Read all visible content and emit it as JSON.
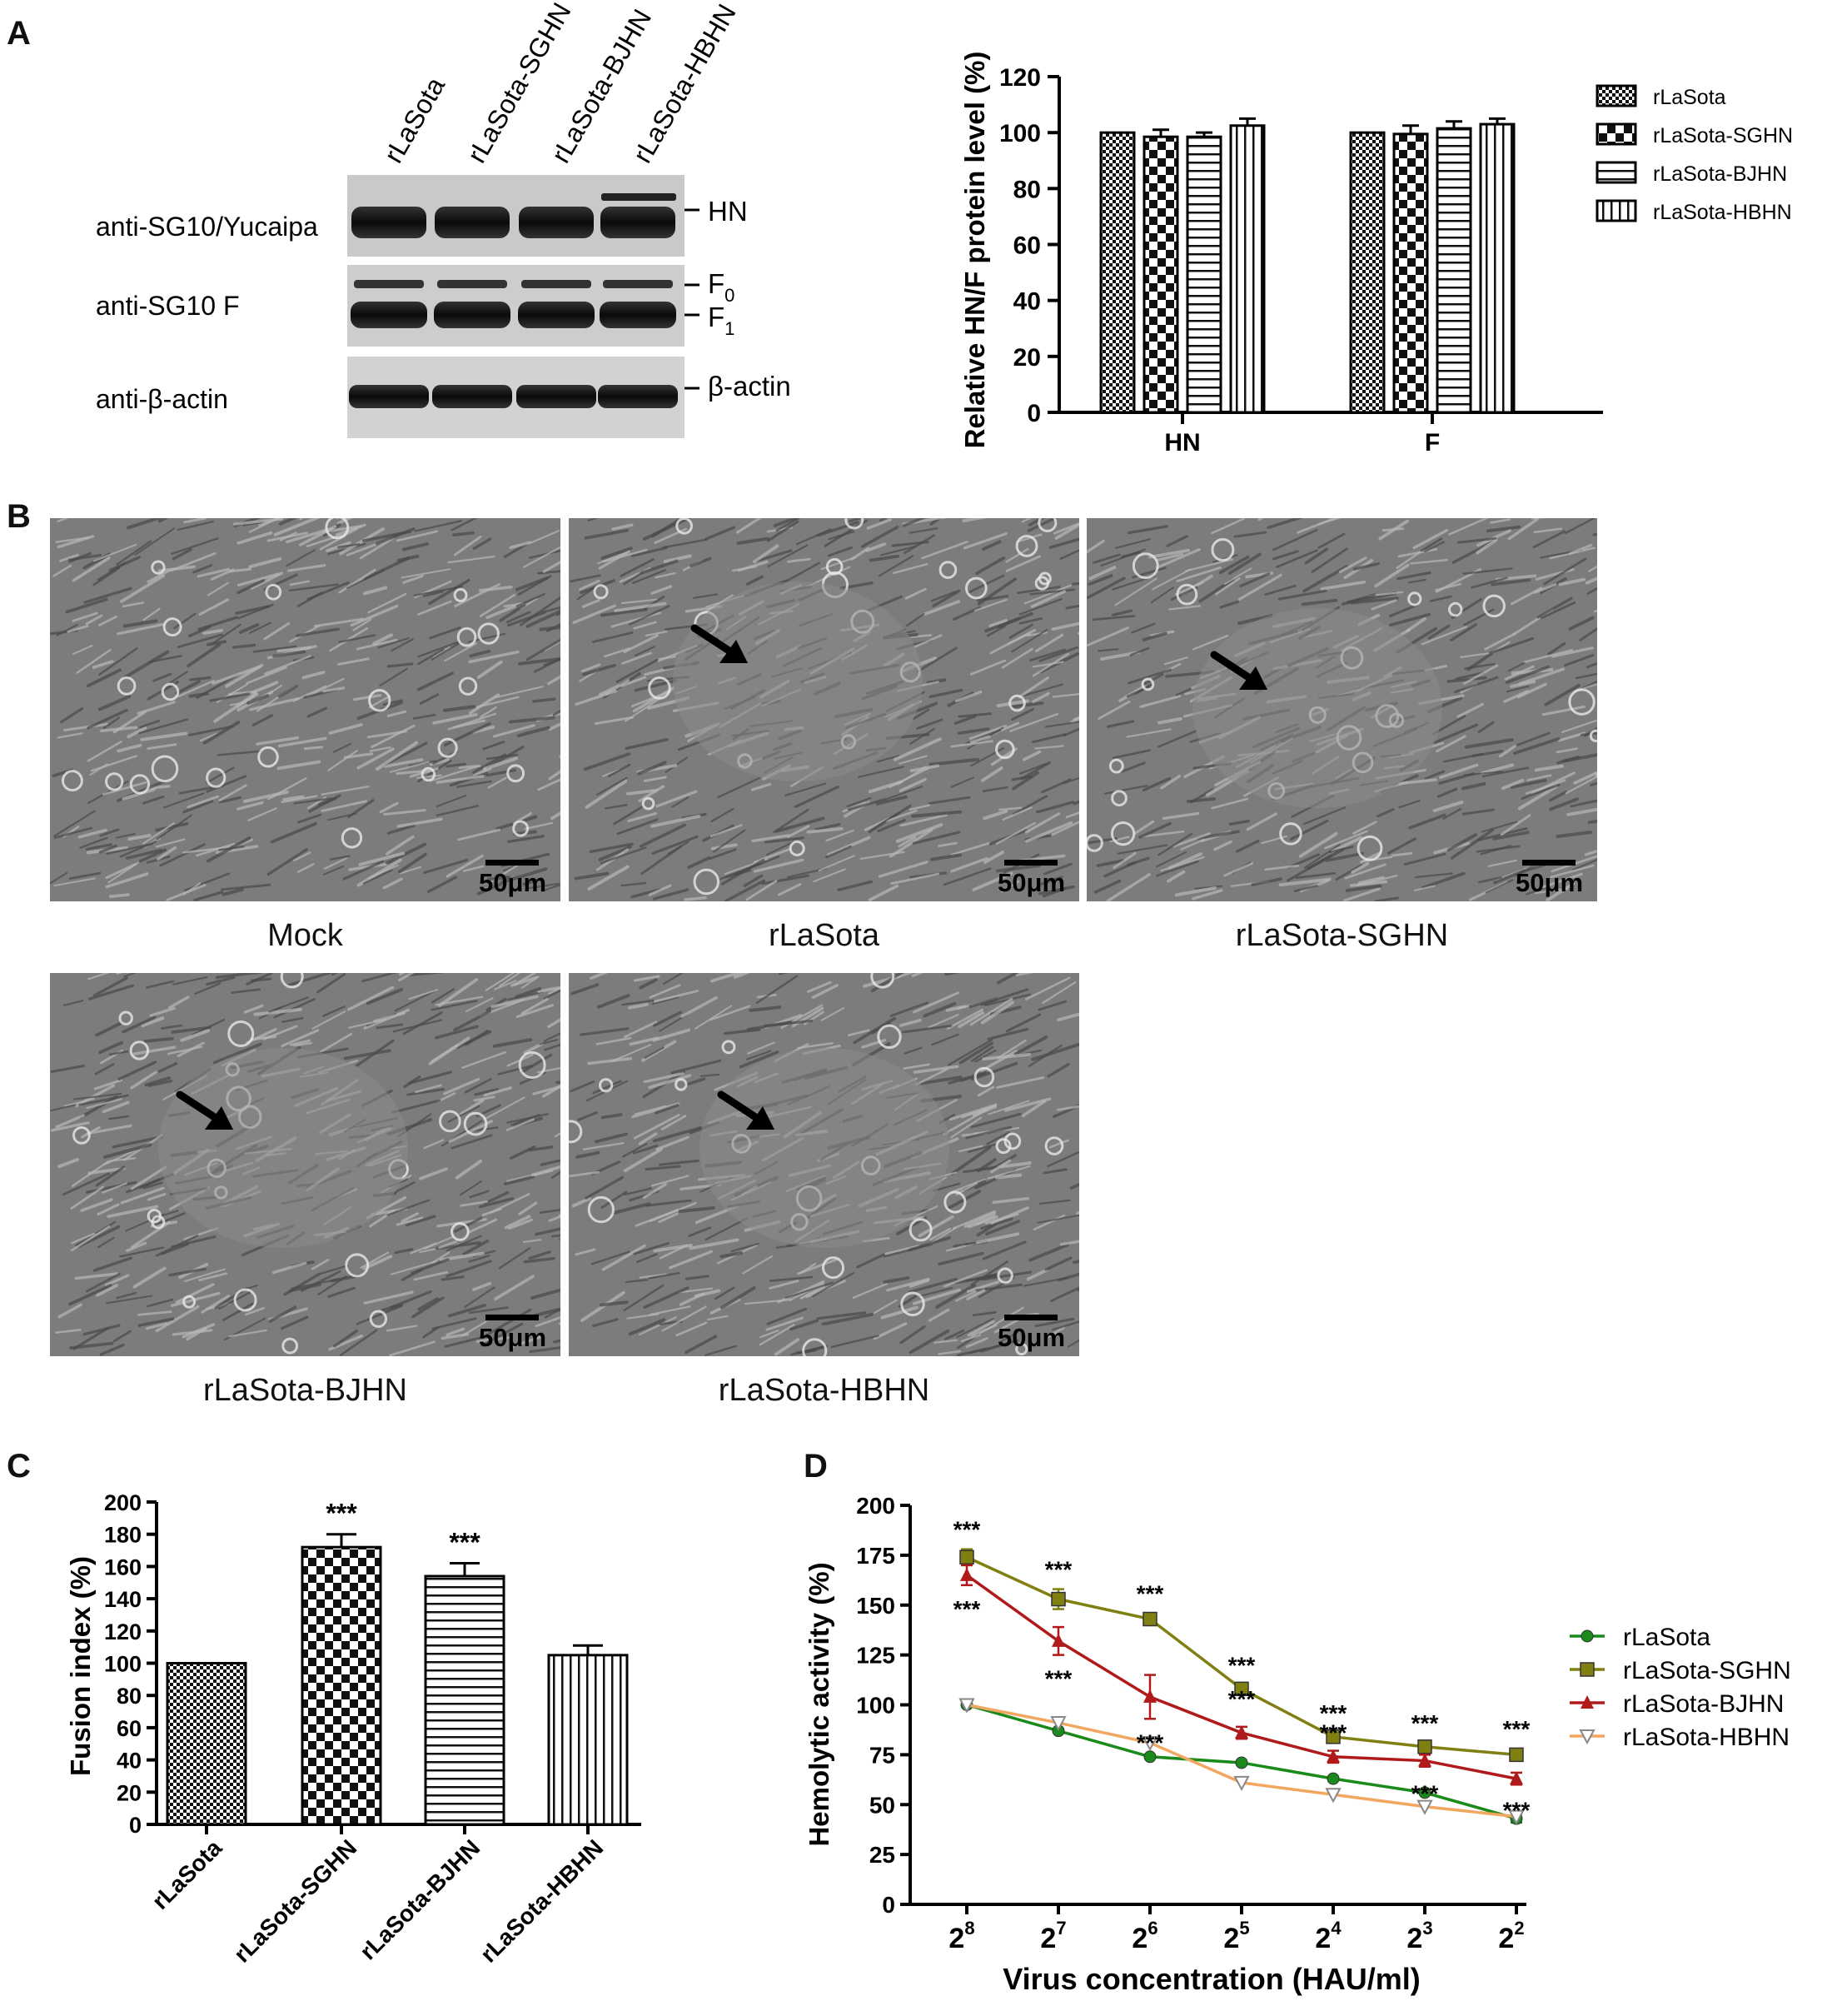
{
  "panels": {
    "a": "A",
    "b": "B",
    "c": "C",
    "d": "D"
  },
  "western_blot": {
    "lanes": [
      "rLaSota",
      "rLaSota-SGHN",
      "rLaSota-BJHN",
      "rLaSota-HBHN"
    ],
    "rows": [
      {
        "antibody": "anti-SG10/Yucaipa",
        "bands": [
          "HN"
        ]
      },
      {
        "antibody": "anti-SG10 F",
        "bands": [
          "F0",
          "F1"
        ]
      },
      {
        "antibody": "anti-β-actin",
        "bands": [
          "β-actin"
        ]
      }
    ],
    "band_labels": {
      "hn": "HN",
      "f0_base": "F",
      "f0_sub": "0",
      "f1_base": "F",
      "f1_sub": "1",
      "actin": "β-actin"
    }
  },
  "micrographs": {
    "scale_label": "50μm",
    "arrow_icon": "arrow-icon",
    "captions": [
      "Mock",
      "rLaSota",
      "rLaSota-SGHN",
      "rLaSota-BJHN",
      "rLaSota-HBHN"
    ]
  },
  "chart_data": [
    {
      "type": "bar",
      "panel": "A",
      "ylabel": "Relative HN/F protein level (%)",
      "categories": [
        "HN",
        "F"
      ],
      "ylim": [
        0,
        120
      ],
      "yticks": [
        "0",
        "20",
        "40",
        "60",
        "80",
        "100",
        "120"
      ],
      "legend_position": "right",
      "series": [
        {
          "name": "rLaSota",
          "pattern": "checker-fine",
          "values": [
            100,
            100
          ],
          "errors": [
            0,
            0
          ]
        },
        {
          "name": "rLaSota-SGHN",
          "pattern": "checker-coarse",
          "values": [
            98.5,
            99.5
          ],
          "errors": [
            2.5,
            3
          ]
        },
        {
          "name": "rLaSota-BJHN",
          "pattern": "horizontal-lines",
          "values": [
            98.5,
            101.5
          ],
          "errors": [
            1.5,
            2.5
          ]
        },
        {
          "name": "rLaSota-HBHN",
          "pattern": "vertical-lines",
          "values": [
            102.5,
            103
          ],
          "errors": [
            2.5,
            2
          ]
        }
      ]
    },
    {
      "type": "bar",
      "panel": "C",
      "ylabel": "Fusion index (%)",
      "categories": [
        "rLaSota",
        "rLaSota-SGHN",
        "rLaSota-BJHN",
        "rLaSota-HBHN"
      ],
      "values": [
        100,
        172,
        154,
        105
      ],
      "errors": [
        0,
        8,
        8,
        6
      ],
      "annotations": [
        "",
        "***",
        "***",
        ""
      ],
      "patterns": [
        "checker-fine",
        "checker-coarse",
        "horizontal-lines",
        "vertical-lines"
      ],
      "ylim": [
        0,
        200
      ],
      "yticks": [
        "0",
        "20",
        "40",
        "60",
        "80",
        "100",
        "120",
        "140",
        "160",
        "180",
        "200"
      ]
    },
    {
      "type": "line",
      "panel": "D",
      "xlabel": "Virus concentration (HAU/ml)",
      "ylabel": "Hemolytic activity (%)",
      "x_base": "2",
      "x": [
        "8",
        "7",
        "6",
        "5",
        "4",
        "3",
        "2"
      ],
      "ylim": [
        0,
        200
      ],
      "yticks": [
        "0",
        "25",
        "50",
        "75",
        "100",
        "125",
        "150",
        "175",
        "200"
      ],
      "legend_position": "right",
      "series": [
        {
          "name": "rLaSota",
          "color": "#1a8a1a",
          "marker": "circle",
          "values": [
            100,
            87,
            74,
            71,
            63,
            56,
            43
          ],
          "errors": [
            0,
            0,
            0,
            0,
            0,
            0,
            2
          ],
          "annotations": [
            "",
            "",
            "",
            "",
            "",
            "",
            ""
          ]
        },
        {
          "name": "rLaSota-SGHN",
          "color": "#7f7f12",
          "marker": "square",
          "values": [
            174,
            153,
            143,
            108,
            84,
            79,
            75
          ],
          "errors": [
            4,
            5,
            3,
            2,
            2,
            2,
            3
          ],
          "annotations": [
            "***",
            "***",
            "***",
            "***",
            "***",
            "***",
            "***"
          ]
        },
        {
          "name": "rLaSota-BJHN",
          "color": "#b01a1a",
          "marker": "triangle",
          "values": [
            165,
            132,
            104,
            86,
            74,
            72,
            63
          ],
          "errors": [
            5,
            7,
            11,
            3,
            3,
            3,
            3
          ],
          "annotations": [
            "***",
            "***",
            "***",
            "***",
            "***",
            "***",
            "***"
          ]
        },
        {
          "name": "rLaSota-HBHN",
          "color": "#f2a760",
          "marker": "triangle-down",
          "values": [
            100,
            91,
            81,
            61,
            55,
            49,
            44
          ],
          "errors": [
            0,
            0,
            0,
            0,
            0,
            0,
            0
          ],
          "annotations": [
            "",
            "",
            "",
            "",
            "",
            "",
            ""
          ]
        }
      ]
    }
  ]
}
